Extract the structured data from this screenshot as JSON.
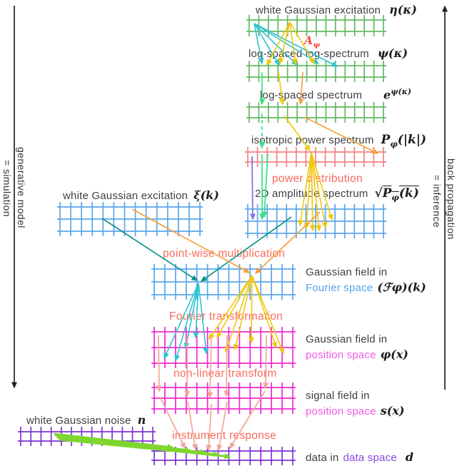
{
  "axes": {
    "left": {
      "direction_label": "generative model",
      "equivalence": "= simulation"
    },
    "right": {
      "direction_label": "back propagation",
      "equivalence": "= inference"
    }
  },
  "nodes": {
    "eta": {
      "label": "white Gaussian excitation",
      "symbol": "η(κ)"
    },
    "psi": {
      "label": "log-spaced log-spectrum",
      "symbol": "ψ(κ)"
    },
    "exp_psi": {
      "label": "log-spaced spectrum",
      "symbol": "e<sup>ψ(κ)</sup>"
    },
    "power": {
      "label": "isotropic power spectrum",
      "symbol": "P<sub>φ</sub>(|k|)"
    },
    "amplitude": {
      "label": "2D amplitude spectrum",
      "symbol": "√<span class=\"ovl\">P<sub>φ</sub>(k)</span>"
    },
    "xi": {
      "label": "white Gaussian excitation",
      "symbol": "ξ(k)"
    },
    "fourier": {
      "label1": "Gaussian field in",
      "label2": "Fourier space",
      "symbol": "(ℱφ)(k)"
    },
    "phi": {
      "label1": "Gaussian field in",
      "label2": "position space",
      "symbol": "φ(x)"
    },
    "signal": {
      "label1": "signal field in",
      "label2": "position space",
      "symbol": "s(x)"
    },
    "noise": {
      "label": "white Gaussian noise",
      "symbol": "n"
    },
    "data": {
      "label1": "data in",
      "label2": "data space",
      "symbol": "d"
    }
  },
  "operations": {
    "amplitude_matrix": "A<sub>ψ</sub>",
    "power_distribution": "power distribution",
    "pointwise_multiplication": "point-wise multiplication",
    "fourier_transformation": "Fourier transformation",
    "nonlinear_transform": "non-linear transform",
    "instrument_response": "instrument response"
  },
  "colors": {
    "grid_green": "#63b963",
    "grid_coral": "#f18484",
    "grid_blue": "#5aa6ec",
    "grid_magenta": "#ee2ad0",
    "grid_purple": "#7c33d6",
    "arrow_cyan": "#2cc4d2",
    "arrow_teal": "#0e938c",
    "arrow_gold": "#f2c70d",
    "arrow_orange": "#f5a03c",
    "arrow_spring": "#35e184",
    "arrow_slate": "#8174ec",
    "arrow_salmon": "#f7a396",
    "arrow_lime": "#7fd62e",
    "annotation_red": "#fa6a5c",
    "amplitude_matrix_red": "#f4473f",
    "fourier_space_blue": "#56a3e8",
    "position_space_magenta": "#f25ae6",
    "data_space_purple": "#8a46e0",
    "axis_black": "#222222"
  }
}
